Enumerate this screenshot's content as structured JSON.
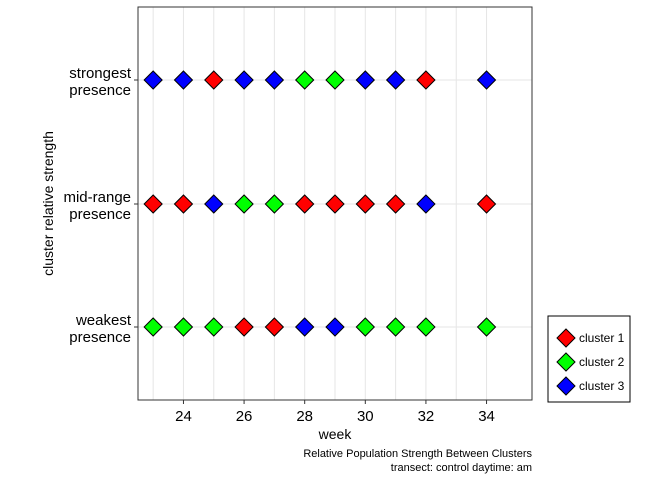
{
  "chart_data": {
    "type": "scatter",
    "title": "",
    "xlabel": "week",
    "ylabel": "cluster relative strength",
    "xlim": [
      22.5,
      35.5
    ],
    "x_ticks": [
      24,
      26,
      28,
      30,
      32,
      34
    ],
    "x_gridlines": [
      23,
      24,
      25,
      26,
      27,
      28,
      29,
      30,
      31,
      32,
      33,
      34
    ],
    "grid": true,
    "marker": "diamond",
    "categories": [
      "weakest presence",
      "mid-range presence",
      "strongest presence"
    ],
    "category_labels": [
      {
        "line1": "weakest",
        "line2": "presence"
      },
      {
        "line1": "mid-range",
        "line2": "presence"
      },
      {
        "line1": "strongest",
        "line2": "presence"
      }
    ],
    "x": [
      23,
      24,
      25,
      26,
      27,
      28,
      29,
      30,
      31,
      32,
      34
    ],
    "series": [
      {
        "name": "cluster 1",
        "color": "#ff0000",
        "levels": [
          "mid-range presence",
          "mid-range presence",
          "strongest presence",
          "weakest presence",
          "weakest presence",
          "mid-range presence",
          "mid-range presence",
          "mid-range presence",
          "mid-range presence",
          "strongest presence",
          "mid-range presence"
        ]
      },
      {
        "name": "cluster 2",
        "color": "#00ff00",
        "levels": [
          "weakest presence",
          "weakest presence",
          "weakest presence",
          "mid-range presence",
          "mid-range presence",
          "strongest presence",
          "strongest presence",
          "weakest presence",
          "weakest presence",
          "weakest presence",
          "weakest presence"
        ]
      },
      {
        "name": "cluster 3",
        "color": "#0000ff",
        "levels": [
          "strongest presence",
          "strongest presence",
          "mid-range presence",
          "strongest presence",
          "strongest presence",
          "weakest presence",
          "weakest presence",
          "strongest presence",
          "strongest presence",
          "mid-range presence",
          "strongest presence"
        ]
      }
    ],
    "legend_position": "bottom-right",
    "caption": [
      "Relative Population Strength Between Clusters",
      "transect: control daytime: am"
    ]
  }
}
